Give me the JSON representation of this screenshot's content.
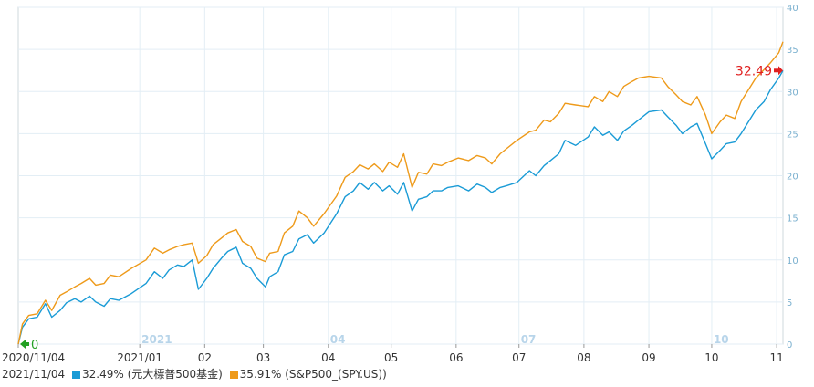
{
  "colors": {
    "fund": "#1a9bd6",
    "spy": "#ee9a1a",
    "grid": "#e3eef5",
    "right_axis_text": "#7ab0cf",
    "year_marker": "#b8d5ea",
    "start_marker": "#22a022",
    "end_marker": "#e02020",
    "border": "#cfd8de"
  },
  "chart_data": {
    "type": "line",
    "x_range": [
      "2020-11-04",
      "2021-11-04"
    ],
    "y_axis_right": {
      "range": [
        0,
        40
      ],
      "ticks": [
        0,
        5,
        10,
        15,
        20,
        25,
        30,
        35,
        40
      ],
      "grid": true
    },
    "x_tick_labels": [
      {
        "date": "2020-11-04",
        "label": "2020/11/04",
        "marker": ""
      },
      {
        "date": "2021-01-01",
        "label": "2021/01",
        "marker": "2021"
      },
      {
        "date": "2021-02-01",
        "label": "02",
        "marker": ""
      },
      {
        "date": "2021-03-01",
        "label": "03",
        "marker": ""
      },
      {
        "date": "2021-04-01",
        "label": "04",
        "marker": "04"
      },
      {
        "date": "2021-05-01",
        "label": "05",
        "marker": ""
      },
      {
        "date": "2021-06-01",
        "label": "06",
        "marker": ""
      },
      {
        "date": "2021-07-01",
        "label": "07",
        "marker": "07"
      },
      {
        "date": "2021-08-01",
        "label": "08",
        "marker": ""
      },
      {
        "date": "2021-09-01",
        "label": "09",
        "marker": ""
      },
      {
        "date": "2021-10-01",
        "label": "10",
        "marker": "10"
      },
      {
        "date": "2021-11-01",
        "label": "11",
        "marker": ""
      }
    ],
    "series": [
      {
        "key": "fund",
        "points": [
          [
            "2020-11-04",
            0
          ],
          [
            "2020-11-06",
            2
          ],
          [
            "2020-11-09",
            3
          ],
          [
            "2020-11-13",
            3.2
          ],
          [
            "2020-11-17",
            4.8
          ],
          [
            "2020-11-20",
            3.2
          ],
          [
            "2020-11-24",
            4
          ],
          [
            "2020-11-27",
            4.9
          ],
          [
            "2020-12-01",
            5.4
          ],
          [
            "2020-12-04",
            5
          ],
          [
            "2020-12-08",
            5.7
          ],
          [
            "2020-12-11",
            5
          ],
          [
            "2020-12-15",
            4.5
          ],
          [
            "2020-12-18",
            5.4
          ],
          [
            "2020-12-22",
            5.2
          ],
          [
            "2020-12-28",
            6
          ],
          [
            "2021-01-04",
            7.2
          ],
          [
            "2021-01-08",
            8.6
          ],
          [
            "2021-01-12",
            7.8
          ],
          [
            "2021-01-15",
            8.8
          ],
          [
            "2021-01-19",
            9.4
          ],
          [
            "2021-01-22",
            9.2
          ],
          [
            "2021-01-26",
            10
          ],
          [
            "2021-01-29",
            6.5
          ],
          [
            "2021-02-02",
            7.8
          ],
          [
            "2021-02-05",
            9
          ],
          [
            "2021-02-09",
            10.2
          ],
          [
            "2021-02-12",
            11
          ],
          [
            "2021-02-16",
            11.5
          ],
          [
            "2021-02-19",
            9.6
          ],
          [
            "2021-02-23",
            9
          ],
          [
            "2021-02-26",
            7.8
          ],
          [
            "2021-03-02",
            6.8
          ],
          [
            "2021-03-04",
            8
          ],
          [
            "2021-03-08",
            8.6
          ],
          [
            "2021-03-11",
            10.6
          ],
          [
            "2021-03-15",
            11
          ],
          [
            "2021-03-18",
            12.5
          ],
          [
            "2021-03-22",
            13
          ],
          [
            "2021-03-25",
            12
          ],
          [
            "2021-03-30",
            13.2
          ],
          [
            "2021-04-05",
            15.5
          ],
          [
            "2021-04-09",
            17.5
          ],
          [
            "2021-04-13",
            18.2
          ],
          [
            "2021-04-16",
            19.2
          ],
          [
            "2021-04-20",
            18.4
          ],
          [
            "2021-04-23",
            19.2
          ],
          [
            "2021-04-27",
            18.2
          ],
          [
            "2021-04-30",
            18.8
          ],
          [
            "2021-05-04",
            17.8
          ],
          [
            "2021-05-07",
            19.2
          ],
          [
            "2021-05-11",
            15.8
          ],
          [
            "2021-05-14",
            17.2
          ],
          [
            "2021-05-18",
            17.5
          ],
          [
            "2021-05-21",
            18.2
          ],
          [
            "2021-05-25",
            18.2
          ],
          [
            "2021-05-28",
            18.6
          ],
          [
            "2021-06-02",
            18.8
          ],
          [
            "2021-06-07",
            18.2
          ],
          [
            "2021-06-11",
            19
          ],
          [
            "2021-06-15",
            18.6
          ],
          [
            "2021-06-18",
            18
          ],
          [
            "2021-06-22",
            18.6
          ],
          [
            "2021-06-25",
            18.8
          ],
          [
            "2021-06-30",
            19.2
          ],
          [
            "2021-07-06",
            20.6
          ],
          [
            "2021-07-09",
            20
          ],
          [
            "2021-07-13",
            21.2
          ],
          [
            "2021-07-16",
            21.8
          ],
          [
            "2021-07-20",
            22.6
          ],
          [
            "2021-07-23",
            24.2
          ],
          [
            "2021-07-28",
            23.6
          ],
          [
            "2021-08-03",
            24.6
          ],
          [
            "2021-08-06",
            25.8
          ],
          [
            "2021-08-10",
            24.8
          ],
          [
            "2021-08-13",
            25.2
          ],
          [
            "2021-08-17",
            24.2
          ],
          [
            "2021-08-20",
            25.3
          ],
          [
            "2021-08-24",
            26
          ],
          [
            "2021-08-27",
            26.6
          ],
          [
            "2021-09-01",
            27.6
          ],
          [
            "2021-09-07",
            27.8
          ],
          [
            "2021-09-10",
            27
          ],
          [
            "2021-09-14",
            26
          ],
          [
            "2021-09-17",
            25
          ],
          [
            "2021-09-21",
            25.8
          ],
          [
            "2021-09-24",
            26.2
          ],
          [
            "2021-09-28",
            23.8
          ],
          [
            "2021-10-01",
            22
          ],
          [
            "2021-10-05",
            23
          ],
          [
            "2021-10-08",
            23.8
          ],
          [
            "2021-10-12",
            24
          ],
          [
            "2021-10-15",
            25
          ],
          [
            "2021-10-19",
            26.6
          ],
          [
            "2021-10-22",
            27.8
          ],
          [
            "2021-10-26",
            28.8
          ],
          [
            "2021-10-29",
            30.2
          ],
          [
            "2021-11-02",
            31.6
          ],
          [
            "2021-11-04",
            32.49
          ]
        ]
      },
      {
        "key": "spy",
        "points": [
          [
            "2020-11-04",
            0
          ],
          [
            "2020-11-06",
            2.4
          ],
          [
            "2020-11-09",
            3.4
          ],
          [
            "2020-11-13",
            3.6
          ],
          [
            "2020-11-17",
            5.2
          ],
          [
            "2020-11-20",
            4
          ],
          [
            "2020-11-24",
            5.8
          ],
          [
            "2020-11-27",
            6.2
          ],
          [
            "2020-12-01",
            6.8
          ],
          [
            "2020-12-04",
            7.2
          ],
          [
            "2020-12-08",
            7.8
          ],
          [
            "2020-12-11",
            7
          ],
          [
            "2020-12-15",
            7.2
          ],
          [
            "2020-12-18",
            8.2
          ],
          [
            "2020-12-22",
            8
          ],
          [
            "2020-12-28",
            9
          ],
          [
            "2021-01-04",
            10
          ],
          [
            "2021-01-08",
            11.4
          ],
          [
            "2021-01-12",
            10.8
          ],
          [
            "2021-01-15",
            11.2
          ],
          [
            "2021-01-19",
            11.6
          ],
          [
            "2021-01-22",
            11.8
          ],
          [
            "2021-01-26",
            12
          ],
          [
            "2021-01-29",
            9.6
          ],
          [
            "2021-02-02",
            10.5
          ],
          [
            "2021-02-05",
            11.8
          ],
          [
            "2021-02-09",
            12.6
          ],
          [
            "2021-02-12",
            13.2
          ],
          [
            "2021-02-16",
            13.6
          ],
          [
            "2021-02-19",
            12.2
          ],
          [
            "2021-02-23",
            11.6
          ],
          [
            "2021-02-26",
            10.2
          ],
          [
            "2021-03-02",
            9.8
          ],
          [
            "2021-03-04",
            10.8
          ],
          [
            "2021-03-08",
            11
          ],
          [
            "2021-03-11",
            13.2
          ],
          [
            "2021-03-15",
            14
          ],
          [
            "2021-03-18",
            15.8
          ],
          [
            "2021-03-22",
            15
          ],
          [
            "2021-03-25",
            14
          ],
          [
            "2021-03-30",
            15.5
          ],
          [
            "2021-04-05",
            17.6
          ],
          [
            "2021-04-09",
            19.8
          ],
          [
            "2021-04-13",
            20.5
          ],
          [
            "2021-04-16",
            21.3
          ],
          [
            "2021-04-20",
            20.8
          ],
          [
            "2021-04-23",
            21.4
          ],
          [
            "2021-04-27",
            20.5
          ],
          [
            "2021-04-30",
            21.6
          ],
          [
            "2021-05-04",
            21
          ],
          [
            "2021-05-07",
            22.6
          ],
          [
            "2021-05-11",
            18.6
          ],
          [
            "2021-05-14",
            20.4
          ],
          [
            "2021-05-18",
            20.2
          ],
          [
            "2021-05-21",
            21.4
          ],
          [
            "2021-05-25",
            21.2
          ],
          [
            "2021-05-28",
            21.6
          ],
          [
            "2021-06-02",
            22.1
          ],
          [
            "2021-06-07",
            21.8
          ],
          [
            "2021-06-11",
            22.4
          ],
          [
            "2021-06-15",
            22.1
          ],
          [
            "2021-06-18",
            21.4
          ],
          [
            "2021-06-22",
            22.6
          ],
          [
            "2021-06-25",
            23.2
          ],
          [
            "2021-06-30",
            24.2
          ],
          [
            "2021-07-06",
            25.2
          ],
          [
            "2021-07-09",
            25.4
          ],
          [
            "2021-07-13",
            26.6
          ],
          [
            "2021-07-16",
            26.4
          ],
          [
            "2021-07-20",
            27.4
          ],
          [
            "2021-07-23",
            28.6
          ],
          [
            "2021-07-28",
            28.4
          ],
          [
            "2021-08-03",
            28.2
          ],
          [
            "2021-08-06",
            29.4
          ],
          [
            "2021-08-10",
            28.8
          ],
          [
            "2021-08-13",
            30
          ],
          [
            "2021-08-17",
            29.4
          ],
          [
            "2021-08-20",
            30.6
          ],
          [
            "2021-08-24",
            31.2
          ],
          [
            "2021-08-27",
            31.6
          ],
          [
            "2021-09-01",
            31.8
          ],
          [
            "2021-09-07",
            31.6
          ],
          [
            "2021-09-10",
            30.6
          ],
          [
            "2021-09-14",
            29.6
          ],
          [
            "2021-09-17",
            28.8
          ],
          [
            "2021-09-21",
            28.4
          ],
          [
            "2021-09-24",
            29.4
          ],
          [
            "2021-09-28",
            27.2
          ],
          [
            "2021-10-01",
            25
          ],
          [
            "2021-10-05",
            26.4
          ],
          [
            "2021-10-08",
            27.2
          ],
          [
            "2021-10-12",
            26.8
          ],
          [
            "2021-10-15",
            28.8
          ],
          [
            "2021-10-19",
            30.4
          ],
          [
            "2021-10-22",
            31.6
          ],
          [
            "2021-10-26",
            32.6
          ],
          [
            "2021-10-29",
            33.4
          ],
          [
            "2021-11-02",
            34.6
          ],
          [
            "2021-11-04",
            35.91
          ]
        ]
      }
    ],
    "annotations": {
      "start_label": "0",
      "end_label": "32.49"
    },
    "legend": {
      "date": "2021/11/04",
      "items": [
        {
          "key": "fund",
          "text": "32.49% (元大標普500基金)"
        },
        {
          "key": "spy",
          "text": "35.91% (S&P500_(SPY.US))"
        }
      ]
    }
  }
}
